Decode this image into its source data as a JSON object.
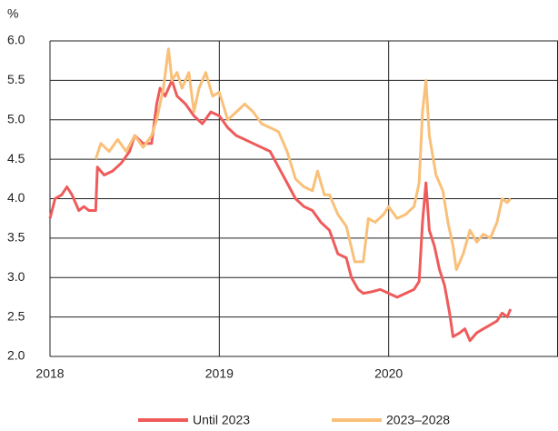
{
  "chart_data": {
    "type": "line",
    "y_label": "%",
    "xlim": [
      2018,
      2021
    ],
    "xticks": [
      2018,
      2019,
      2020
    ],
    "ylim": [
      2.0,
      6.0
    ],
    "yticks": [
      {
        "value": 2.0,
        "label": "2.0"
      },
      {
        "value": 2.5,
        "label": "2.5"
      },
      {
        "value": 3.0,
        "label": "3.0"
      },
      {
        "value": 3.5,
        "label": "3.5"
      },
      {
        "value": 4.0,
        "label": "4.0"
      },
      {
        "value": 4.5,
        "label": "4.5"
      },
      {
        "value": 5.0,
        "label": "5.0"
      },
      {
        "value": 5.5,
        "label": "5.5"
      },
      {
        "value": 6.0,
        "label": "6.0"
      }
    ],
    "grid": true,
    "legend": "bottom",
    "series": [
      {
        "name": "Until 2023",
        "color": "#ef5b5b",
        "x": [
          2018.0,
          2018.03,
          2018.07,
          2018.1,
          2018.13,
          2018.17,
          2018.2,
          2018.23,
          2018.27,
          2018.28,
          2018.32,
          2018.37,
          2018.42,
          2018.47,
          2018.5,
          2018.55,
          2018.6,
          2018.63,
          2018.65,
          2018.68,
          2018.72,
          2018.75,
          2018.8,
          2018.85,
          2018.9,
          2018.95,
          2019.0,
          2019.05,
          2019.1,
          2019.15,
          2019.2,
          2019.25,
          2019.3,
          2019.35,
          2019.4,
          2019.45,
          2019.5,
          2019.55,
          2019.6,
          2019.65,
          2019.7,
          2019.75,
          2019.78,
          2019.82,
          2019.85,
          2019.9,
          2019.95,
          2020.0,
          2020.05,
          2020.1,
          2020.15,
          2020.18,
          2020.2,
          2020.22,
          2020.24,
          2020.27,
          2020.3,
          2020.33,
          2020.36,
          2020.38,
          2020.42,
          2020.45,
          2020.48,
          2020.52,
          2020.56,
          2020.6,
          2020.64,
          2020.67,
          2020.7,
          2020.72
        ],
        "values": [
          3.75,
          4.0,
          4.05,
          4.15,
          4.05,
          3.85,
          3.9,
          3.85,
          3.85,
          4.4,
          4.3,
          4.35,
          4.45,
          4.6,
          4.8,
          4.7,
          4.7,
          5.2,
          5.4,
          5.3,
          5.5,
          5.3,
          5.2,
          5.05,
          4.95,
          5.1,
          5.05,
          4.9,
          4.8,
          4.75,
          4.7,
          4.65,
          4.6,
          4.4,
          4.2,
          4.0,
          3.9,
          3.85,
          3.7,
          3.6,
          3.3,
          3.25,
          3.0,
          2.85,
          2.8,
          2.82,
          2.85,
          2.8,
          2.75,
          2.8,
          2.85,
          2.95,
          3.7,
          4.2,
          3.6,
          3.4,
          3.1,
          2.9,
          2.55,
          2.25,
          2.3,
          2.35,
          2.2,
          2.3,
          2.35,
          2.4,
          2.45,
          2.55,
          2.5,
          2.6
        ]
      },
      {
        "name": "2023–2028",
        "color": "#f9c07a",
        "x": [
          2018.27,
          2018.3,
          2018.35,
          2018.4,
          2018.45,
          2018.5,
          2018.55,
          2018.6,
          2018.63,
          2018.67,
          2018.7,
          2018.72,
          2018.75,
          2018.78,
          2018.82,
          2018.85,
          2018.88,
          2018.92,
          2018.96,
          2019.0,
          2019.05,
          2019.1,
          2019.15,
          2019.2,
          2019.25,
          2019.3,
          2019.35,
          2019.4,
          2019.45,
          2019.5,
          2019.55,
          2019.58,
          2019.62,
          2019.65,
          2019.7,
          2019.75,
          2019.8,
          2019.85,
          2019.88,
          2019.92,
          2019.97,
          2020.0,
          2020.05,
          2020.1,
          2020.15,
          2020.18,
          2020.2,
          2020.22,
          2020.24,
          2020.28,
          2020.32,
          2020.35,
          2020.38,
          2020.4,
          2020.44,
          2020.48,
          2020.52,
          2020.56,
          2020.6,
          2020.64,
          2020.67,
          2020.7,
          2020.72
        ],
        "values": [
          4.5,
          4.7,
          4.6,
          4.75,
          4.6,
          4.8,
          4.65,
          4.8,
          5.0,
          5.4,
          5.9,
          5.5,
          5.6,
          5.4,
          5.6,
          5.1,
          5.4,
          5.6,
          5.3,
          5.35,
          5.0,
          5.1,
          5.2,
          5.1,
          4.95,
          4.9,
          4.85,
          4.6,
          4.25,
          4.15,
          4.1,
          4.35,
          4.05,
          4.05,
          3.8,
          3.65,
          3.2,
          3.2,
          3.75,
          3.7,
          3.8,
          3.9,
          3.75,
          3.8,
          3.9,
          4.2,
          5.1,
          5.5,
          4.8,
          4.3,
          4.1,
          3.7,
          3.4,
          3.1,
          3.3,
          3.6,
          3.45,
          3.55,
          3.5,
          3.7,
          4.0,
          3.95,
          4.0
        ]
      }
    ]
  }
}
